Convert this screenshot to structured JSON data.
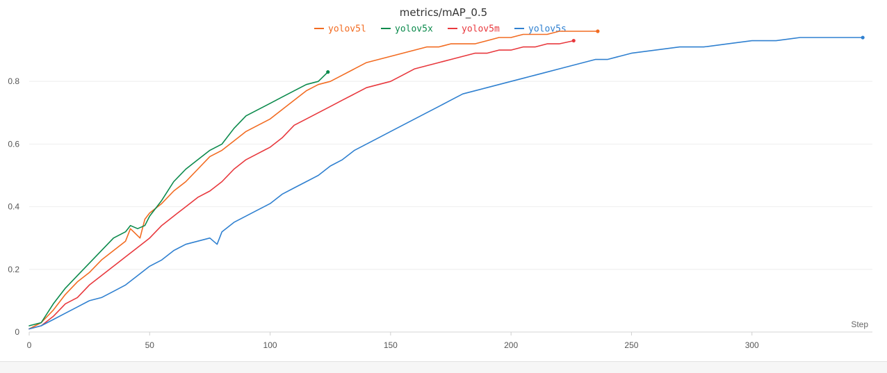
{
  "chart_data": {
    "type": "line",
    "title": "metrics/mAP_0.5",
    "xlabel": "Step",
    "ylabel": "",
    "xlim": [
      0,
      350
    ],
    "ylim": [
      0,
      0.98
    ],
    "xticks": [
      0,
      50,
      100,
      150,
      200,
      250,
      300
    ],
    "yticks": [
      0,
      0.2,
      0.4,
      0.6,
      0.8
    ],
    "grid": "horizontal",
    "legend_position": "top-center",
    "series": [
      {
        "name": "yolov5l",
        "color": "#f26b21",
        "x": [
          0,
          5,
          10,
          15,
          20,
          25,
          30,
          35,
          40,
          42,
          46,
          48,
          50,
          55,
          60,
          65,
          70,
          75,
          80,
          85,
          90,
          95,
          100,
          105,
          110,
          115,
          120,
          125,
          130,
          135,
          140,
          145,
          150,
          155,
          160,
          165,
          170,
          175,
          180,
          185,
          190,
          195,
          200,
          205,
          210,
          215,
          220,
          225,
          230,
          236
        ],
        "y": [
          0.01,
          0.03,
          0.07,
          0.12,
          0.16,
          0.19,
          0.23,
          0.26,
          0.29,
          0.33,
          0.3,
          0.36,
          0.38,
          0.41,
          0.45,
          0.48,
          0.52,
          0.56,
          0.58,
          0.61,
          0.64,
          0.66,
          0.68,
          0.71,
          0.74,
          0.77,
          0.79,
          0.8,
          0.82,
          0.84,
          0.86,
          0.87,
          0.88,
          0.89,
          0.9,
          0.91,
          0.91,
          0.92,
          0.92,
          0.92,
          0.93,
          0.94,
          0.94,
          0.95,
          0.95,
          0.95,
          0.96,
          0.96,
          0.96,
          0.96
        ]
      },
      {
        "name": "yolov5x",
        "color": "#0b8a4c",
        "x": [
          0,
          5,
          10,
          15,
          20,
          25,
          30,
          35,
          40,
          42,
          45,
          48,
          50,
          55,
          60,
          65,
          70,
          75,
          80,
          85,
          90,
          95,
          100,
          105,
          110,
          115,
          120,
          124
        ],
        "y": [
          0.02,
          0.03,
          0.09,
          0.14,
          0.18,
          0.22,
          0.26,
          0.3,
          0.32,
          0.34,
          0.33,
          0.34,
          0.37,
          0.42,
          0.48,
          0.52,
          0.55,
          0.58,
          0.6,
          0.65,
          0.69,
          0.71,
          0.73,
          0.75,
          0.77,
          0.79,
          0.8,
          0.83
        ]
      },
      {
        "name": "yolov5m",
        "color": "#e8383d",
        "x": [
          0,
          5,
          10,
          15,
          20,
          25,
          30,
          35,
          40,
          45,
          50,
          55,
          60,
          65,
          70,
          75,
          80,
          85,
          90,
          95,
          100,
          105,
          110,
          115,
          120,
          125,
          130,
          135,
          140,
          145,
          150,
          155,
          160,
          165,
          170,
          175,
          180,
          185,
          190,
          195,
          200,
          205,
          210,
          215,
          220,
          226
        ],
        "y": [
          0.01,
          0.02,
          0.05,
          0.09,
          0.11,
          0.15,
          0.18,
          0.21,
          0.24,
          0.27,
          0.3,
          0.34,
          0.37,
          0.4,
          0.43,
          0.45,
          0.48,
          0.52,
          0.55,
          0.57,
          0.59,
          0.62,
          0.66,
          0.68,
          0.7,
          0.72,
          0.74,
          0.76,
          0.78,
          0.79,
          0.8,
          0.82,
          0.84,
          0.85,
          0.86,
          0.87,
          0.88,
          0.89,
          0.89,
          0.9,
          0.9,
          0.91,
          0.91,
          0.92,
          0.92,
          0.93
        ]
      },
      {
        "name": "yolov5s",
        "color": "#2f80d0",
        "x": [
          0,
          5,
          10,
          15,
          20,
          25,
          30,
          35,
          40,
          45,
          50,
          55,
          60,
          65,
          70,
          75,
          78,
          80,
          85,
          90,
          95,
          100,
          105,
          110,
          115,
          120,
          125,
          130,
          135,
          140,
          145,
          150,
          155,
          160,
          165,
          170,
          175,
          180,
          185,
          190,
          195,
          200,
          205,
          210,
          215,
          220,
          225,
          230,
          235,
          240,
          245,
          250,
          260,
          270,
          280,
          290,
          300,
          310,
          320,
          330,
          340,
          346
        ],
        "y": [
          0.01,
          0.02,
          0.04,
          0.06,
          0.08,
          0.1,
          0.11,
          0.13,
          0.15,
          0.18,
          0.21,
          0.23,
          0.26,
          0.28,
          0.29,
          0.3,
          0.28,
          0.32,
          0.35,
          0.37,
          0.39,
          0.41,
          0.44,
          0.46,
          0.48,
          0.5,
          0.53,
          0.55,
          0.58,
          0.6,
          0.62,
          0.64,
          0.66,
          0.68,
          0.7,
          0.72,
          0.74,
          0.76,
          0.77,
          0.78,
          0.79,
          0.8,
          0.81,
          0.82,
          0.83,
          0.84,
          0.85,
          0.86,
          0.87,
          0.87,
          0.88,
          0.89,
          0.9,
          0.91,
          0.91,
          0.92,
          0.93,
          0.93,
          0.94,
          0.94,
          0.94,
          0.94
        ]
      }
    ]
  }
}
